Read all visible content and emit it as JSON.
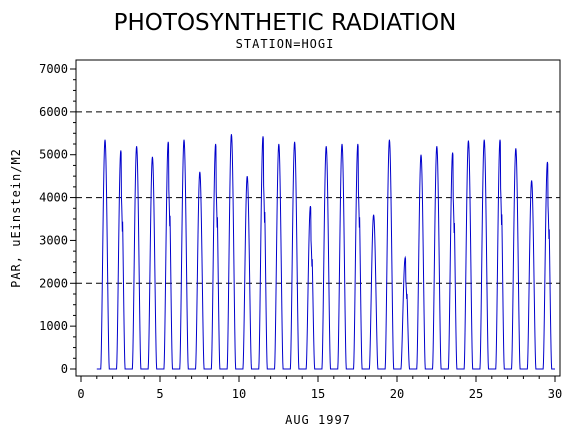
{
  "chart_data": {
    "type": "line",
    "title": "PHOTOSYNTHETIC RADIATION",
    "subtitle": "STATION=HOGI",
    "xlabel": "AUG 1997",
    "ylabel": "PAR, uEinstein/M2",
    "xlim": [
      0,
      30
    ],
    "ylim": [
      0,
      7000
    ],
    "x_ticks": [
      0,
      5,
      10,
      15,
      20,
      25,
      30
    ],
    "y_ticks": [
      0,
      1000,
      2000,
      3000,
      4000,
      5000,
      6000,
      7000
    ],
    "y_tick_labels": [
      "0",
      "1000",
      "2000",
      "3000",
      "4000",
      "5000",
      "6000",
      "7000"
    ],
    "reference_lines": [
      2000,
      4000,
      6000
    ],
    "series_color": "#0000cc",
    "series": [
      {
        "daily_peak_day": [
          1.5,
          2.5,
          3.5,
          4.5,
          5.5,
          6.5,
          7.5,
          8.5,
          9.5,
          10.5,
          11.5,
          12.5,
          13.5,
          14.5,
          15.5,
          16.5,
          17.5,
          18.5,
          19.5,
          20.5,
          21.5,
          22.5,
          23.5,
          24.5,
          25.5,
          26.5,
          27.5,
          28.5,
          29.5
        ],
        "daily_peak_par": [
          5350,
          5100,
          5200,
          4950,
          5300,
          5350,
          4600,
          5250,
          5480,
          4500,
          5430,
          5250,
          5300,
          3800,
          5200,
          5250,
          5250,
          3600,
          5350,
          2600,
          5000,
          5200,
          5050,
          5330,
          5350,
          5350,
          5150,
          4400,
          4830
        ]
      }
    ]
  }
}
